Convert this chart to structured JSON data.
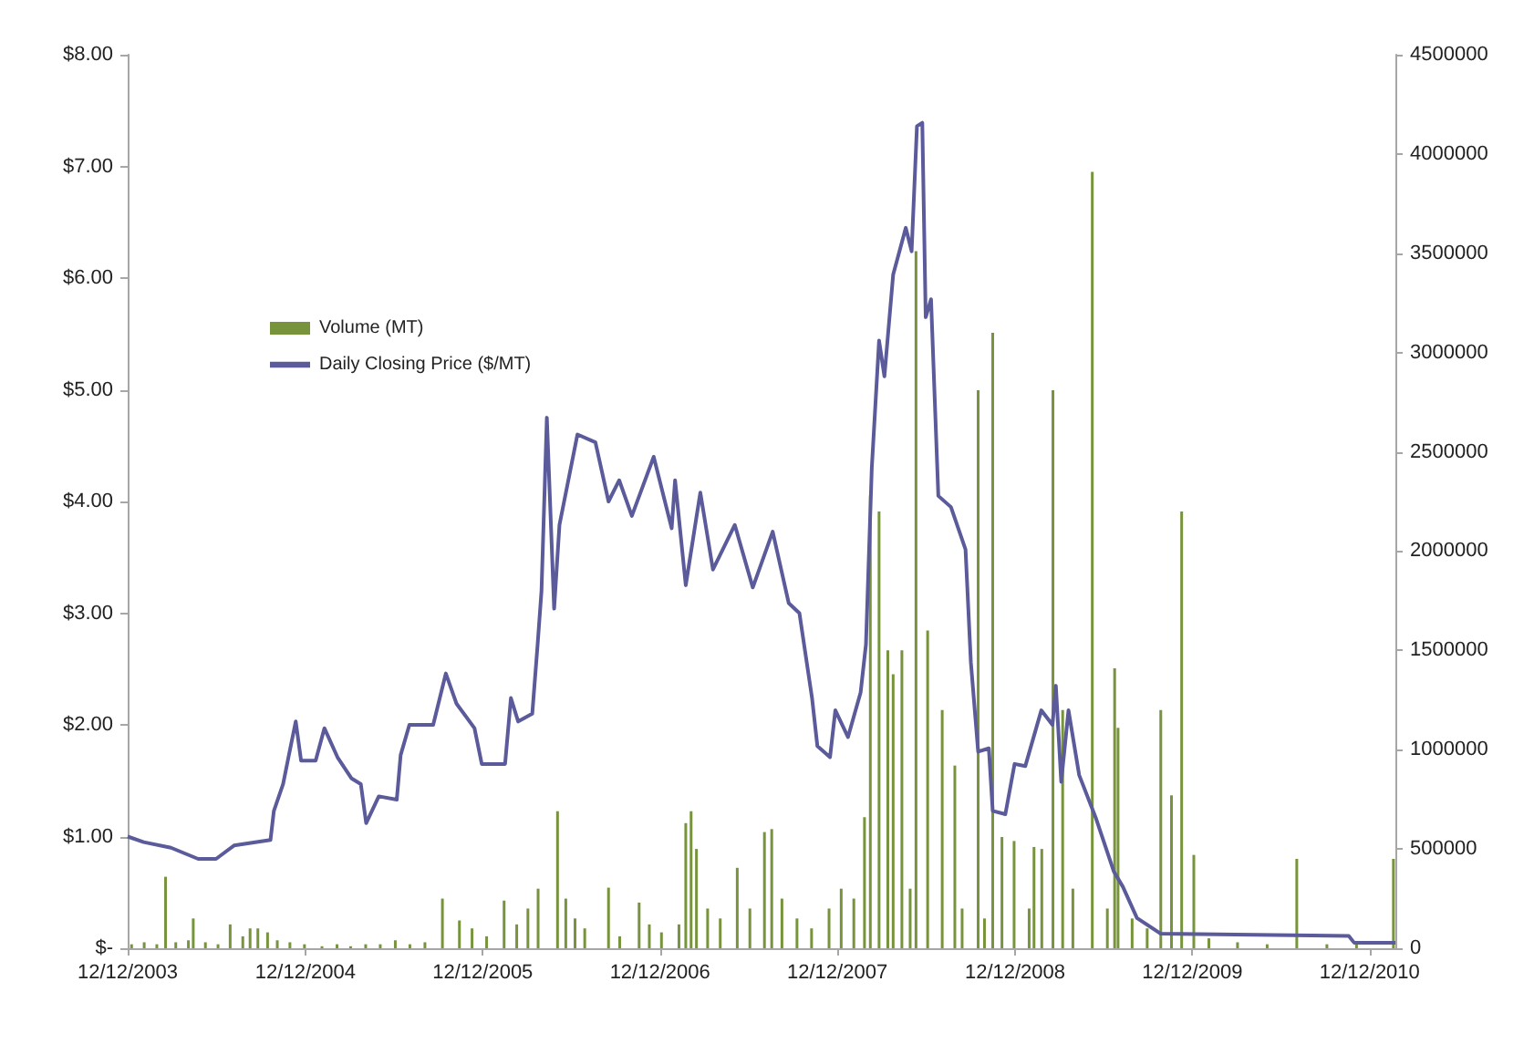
{
  "chart_data": {
    "type": "line",
    "legend": "top left",
    "xlim": [
      "2003-12-12",
      "2011-02-03"
    ],
    "xticks": [
      {
        "value": "2003-12-12",
        "label": "12/12/2003"
      },
      {
        "value": "2004-12-12",
        "label": "12/12/2004"
      },
      {
        "value": "2005-12-12",
        "label": "12/12/2005"
      },
      {
        "value": "2006-12-12",
        "label": "12/12/2006"
      },
      {
        "value": "2007-12-12",
        "label": "12/12/2007"
      },
      {
        "value": "2008-12-12",
        "label": "12/12/2008"
      },
      {
        "value": "2009-12-12",
        "label": "12/12/2009"
      },
      {
        "value": "2010-12-12",
        "label": "12/12/2010"
      }
    ],
    "ylim": [
      0,
      8
    ],
    "yticks": [
      {
        "value": 0,
        "label": "$-"
      },
      {
        "value": 1,
        "label": "$1.00"
      },
      {
        "value": 2,
        "label": "$2.00"
      },
      {
        "value": 3,
        "label": "$3.00"
      },
      {
        "value": 4,
        "label": "$4.00"
      },
      {
        "value": 5,
        "label": "$5.00"
      },
      {
        "value": 6,
        "label": "$6.00"
      },
      {
        "value": 7,
        "label": "$7.00"
      },
      {
        "value": 8,
        "label": "$8.00"
      }
    ],
    "y2lim": [
      0,
      4500000
    ],
    "y2ticks": [
      0,
      500000,
      1000000,
      1500000,
      2000000,
      2500000,
      3000000,
      3500000,
      4000000,
      4500000
    ],
    "grid": false,
    "marker": "none",
    "line_style": "solid",
    "series": [
      {
        "name": "Volume (MT)",
        "type": "bar",
        "axis": "y2",
        "color": "#77933c",
        "x": [
          "2003-12-20",
          "2004-01-15",
          "2004-02-10",
          "2004-02-28",
          "2004-03-20",
          "2004-04-15",
          "2004-04-25",
          "2004-05-20",
          "2004-06-15",
          "2004-07-10",
          "2004-08-05",
          "2004-08-20",
          "2004-09-05",
          "2004-09-25",
          "2004-10-15",
          "2004-11-10",
          "2004-12-10",
          "2005-01-15",
          "2005-02-15",
          "2005-03-15",
          "2005-04-15",
          "2005-05-15",
          "2005-06-15",
          "2005-07-15",
          "2005-08-15",
          "2005-09-20",
          "2005-10-25",
          "2005-11-20",
          "2005-12-20",
          "2006-01-25",
          "2006-02-20",
          "2006-03-15",
          "2006-04-05",
          "2006-05-15",
          "2006-06-01",
          "2006-06-20",
          "2006-07-10",
          "2006-08-28",
          "2006-09-20",
          "2006-10-30",
          "2006-11-20",
          "2006-12-15",
          "2007-01-20",
          "2007-02-03",
          "2007-02-14",
          "2007-02-25",
          "2007-03-20",
          "2007-04-15",
          "2007-05-20",
          "2007-06-15",
          "2007-07-15",
          "2007-07-30",
          "2007-08-20",
          "2007-09-20",
          "2007-10-20",
          "2007-11-25",
          "2007-12-20",
          "2008-01-15",
          "2008-02-06",
          "2008-02-18",
          "2008-03-07",
          "2008-03-25",
          "2008-04-05",
          "2008-04-23",
          "2008-05-10",
          "2008-05-22",
          "2008-06-15",
          "2008-07-15",
          "2008-08-10",
          "2008-08-25",
          "2008-09-27",
          "2008-10-10",
          "2008-10-27",
          "2008-11-15",
          "2008-12-10",
          "2009-01-10",
          "2009-01-20",
          "2009-02-05",
          "2009-02-28",
          "2009-03-20",
          "2009-04-10",
          "2009-05-20",
          "2009-06-20",
          "2009-07-05",
          "2009-07-12",
          "2009-08-10",
          "2009-09-10",
          "2009-10-08",
          "2009-10-30",
          "2009-11-20",
          "2009-12-15",
          "2010-01-15",
          "2010-03-15",
          "2010-05-15",
          "2010-07-15",
          "2010-09-15",
          "2010-11-15",
          "2011-01-30"
        ],
        "values": [
          20000,
          30000,
          20000,
          360000,
          30000,
          40000,
          150000,
          30000,
          20000,
          120000,
          60000,
          100000,
          100000,
          80000,
          40000,
          30000,
          20000,
          10000,
          20000,
          10000,
          20000,
          20000,
          40000,
          20000,
          30000,
          250000,
          140000,
          100000,
          60000,
          240000,
          120000,
          200000,
          300000,
          690000,
          250000,
          150000,
          100000,
          305000,
          60000,
          230000,
          120000,
          80000,
          120000,
          630000,
          690000,
          500000,
          200000,
          150000,
          405000,
          200000,
          585000,
          600000,
          250000,
          150000,
          100000,
          200000,
          300000,
          250000,
          660000,
          2280000,
          2200000,
          1500000,
          1380000,
          1500000,
          300000,
          3510000,
          1600000,
          1200000,
          920000,
          200000,
          2810000,
          150000,
          3100000,
          560000,
          540000,
          200000,
          510000,
          500000,
          2810000,
          1200000,
          300000,
          3910000,
          200000,
          1410000,
          1110000,
          150000,
          100000,
          1200000,
          770000,
          2200000,
          470000,
          50000,
          30000,
          20000,
          450000,
          20000,
          20000,
          450000
        ]
      },
      {
        "name": "Daily Closing Price ($/MT)",
        "color": "#5b5b9b",
        "x": [
          "2003-12-12",
          "2004-01-14",
          "2004-03-10",
          "2004-05-05",
          "2004-06-11",
          "2004-07-18",
          "2004-10-01",
          "2004-10-08",
          "2004-10-27",
          "2004-11-07",
          "2004-11-22",
          "2004-12-03",
          "2005-01-02",
          "2005-01-20",
          "2005-02-16",
          "2005-03-17",
          "2005-04-05",
          "2005-04-16",
          "2005-05-12",
          "2005-06-18",
          "2005-06-26",
          "2005-07-14",
          "2005-09-01",
          "2005-09-27",
          "2005-10-19",
          "2005-11-25",
          "2005-12-10",
          "2006-01-27",
          "2006-02-08",
          "2006-02-23",
          "2006-03-24",
          "2006-04-04",
          "2006-04-12",
          "2006-04-23",
          "2006-05-08",
          "2006-05-19",
          "2006-06-25",
          "2006-08-01",
          "2006-08-28",
          "2006-09-19",
          "2006-10-15",
          "2006-11-29",
          "2007-01-05",
          "2007-01-12",
          "2007-02-03",
          "2007-03-05",
          "2007-03-31",
          "2007-05-15",
          "2007-06-21",
          "2007-08-01",
          "2007-09-03",
          "2007-09-25",
          "2007-10-21",
          "2007-11-01",
          "2007-11-27",
          "2007-12-08",
          "2008-01-03",
          "2008-01-29",
          "2008-02-09",
          "2008-02-21",
          "2008-03-07",
          "2008-03-18",
          "2008-04-05",
          "2008-05-01",
          "2008-05-13",
          "2008-05-24",
          "2008-06-04",
          "2008-06-11",
          "2008-06-22",
          "2008-07-07",
          "2008-08-02",
          "2008-09-01",
          "2008-09-12",
          "2008-09-27",
          "2008-10-19",
          "2008-10-27",
          "2008-11-22",
          "2008-12-11",
          "2009-01-02",
          "2009-02-04",
          "2009-02-27",
          "2009-03-06",
          "2009-03-17",
          "2009-04-01",
          "2009-04-23",
          "2009-05-27",
          "2009-07-03",
          "2009-07-22",
          "2009-08-20",
          "2009-10-08",
          "2010-10-30",
          "2010-11-10",
          "2011-02-03"
        ],
        "values": [
          1.0,
          0.95,
          0.9,
          0.8,
          0.8,
          0.92,
          0.97,
          1.23,
          1.47,
          1.71,
          2.03,
          1.68,
          1.68,
          1.97,
          1.71,
          1.52,
          1.47,
          1.12,
          1.36,
          1.33,
          1.73,
          2.0,
          2.0,
          2.46,
          2.19,
          1.97,
          1.65,
          1.65,
          2.24,
          2.03,
          2.1,
          2.72,
          3.2,
          4.75,
          3.04,
          3.79,
          4.6,
          4.53,
          4.0,
          4.19,
          3.87,
          4.4,
          3.76,
          4.19,
          3.25,
          4.08,
          3.39,
          3.79,
          3.23,
          3.73,
          3.09,
          3.0,
          2.24,
          1.81,
          1.71,
          2.13,
          1.89,
          2.29,
          2.72,
          4.3,
          5.44,
          5.12,
          6.03,
          6.45,
          6.24,
          7.36,
          7.39,
          5.65,
          5.81,
          4.05,
          3.95,
          3.57,
          2.56,
          1.76,
          1.79,
          1.23,
          1.2,
          1.65,
          1.63,
          2.13,
          2.0,
          2.35,
          1.49,
          2.13,
          1.55,
          1.17,
          0.69,
          0.55,
          0.27,
          0.13,
          0.11,
          0.05,
          0.05
        ]
      }
    ]
  }
}
